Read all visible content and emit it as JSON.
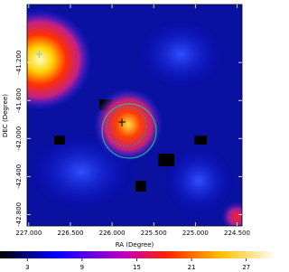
{
  "chart_data": {
    "type": "image",
    "xlabel": "RA (Degree)",
    "ylabel": "DEC (Degree)",
    "xlim": [
      227.02,
      224.44
    ],
    "xticks": [
      {
        "value": 227,
        "label": "227.000"
      },
      {
        "value": 226.5,
        "label": "226.500"
      },
      {
        "value": 226,
        "label": "226.000"
      },
      {
        "value": 225.5,
        "label": "225.500"
      },
      {
        "value": 225,
        "label": "225.000"
      },
      {
        "value": 224.5,
        "label": "224.500"
      }
    ],
    "ylim": [
      -42.92,
      -40.59
    ],
    "yticks": [
      {
        "value": -42.8,
        "label": "-42.800"
      },
      {
        "value": -42.4,
        "label": "-42.400"
      },
      {
        "value": -42,
        "label": "-42.000"
      },
      {
        "value": -41.6,
        "label": "-41.600"
      },
      {
        "value": -41.2,
        "label": "-41.200"
      }
    ],
    "colorbar": {
      "lim": [
        0,
        30.3
      ],
      "ticks": [
        3,
        9,
        15,
        21,
        27
      ]
    }
  }
}
